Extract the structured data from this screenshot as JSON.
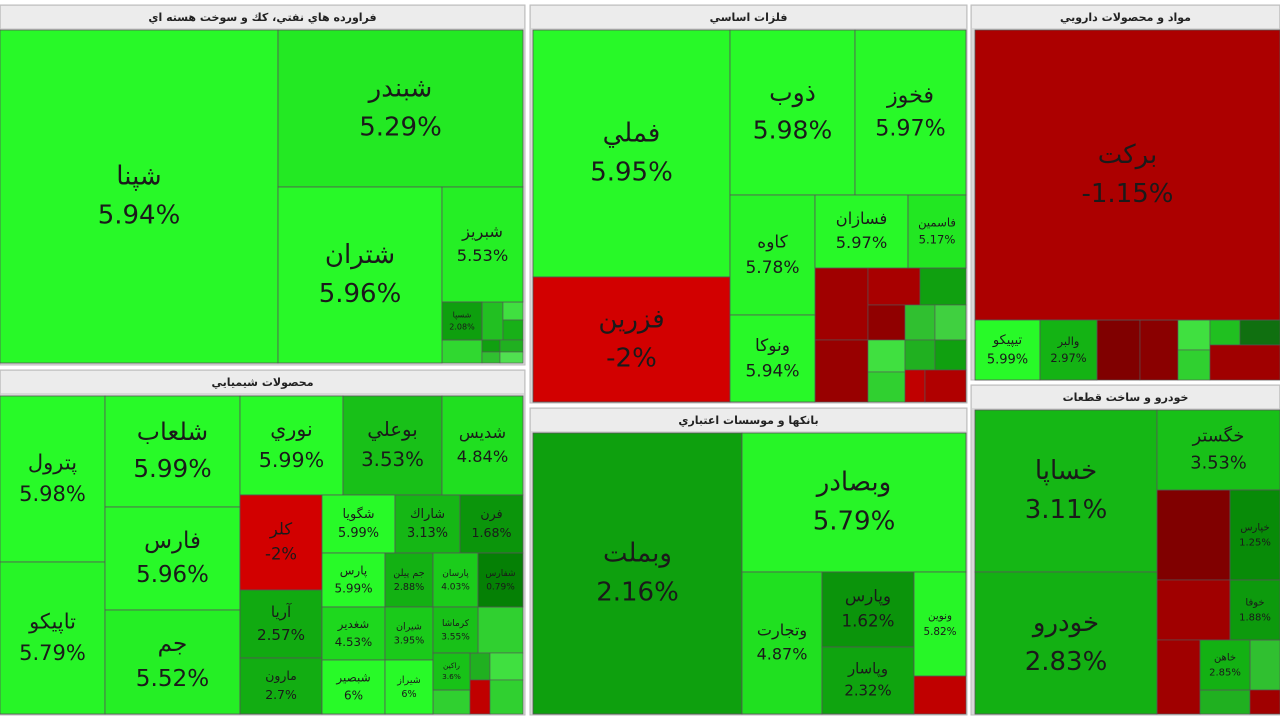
{
  "chart_data": [
    {
      "type": "treemap",
      "title": "فراورده هاي نفتي، كك و سوخت هسته اي",
      "categories": [
        "شپنا",
        "شبندر",
        "شتران",
        "شبریز",
        "شسپا"
      ],
      "values": [
        5.94,
        5.29,
        5.96,
        5.53,
        2.08
      ],
      "value_labels": [
        "5.94%",
        "5.29%",
        "5.96%",
        "5.53%",
        "2.08%"
      ]
    },
    {
      "type": "treemap",
      "title": "فلزات اساسي",
      "categories": [
        "فملي",
        "فزرين",
        "ذوب",
        "فخوز",
        "كاوه",
        "ونوكا",
        "فسازان",
        "فاسمين"
      ],
      "values": [
        5.95,
        -2,
        5.98,
        5.97,
        5.78,
        5.94,
        5.97,
        5.17
      ],
      "value_labels": [
        "5.95%",
        "-2%",
        "5.98%",
        "5.97%",
        "5.78%",
        "5.94%",
        "5.97%",
        "5.17%"
      ]
    },
    {
      "type": "treemap",
      "title": "مواد و محصولات دارويي",
      "categories": [
        "بركت",
        "تيپيكو",
        "والبر"
      ],
      "values": [
        -1.15,
        5.99,
        2.97
      ],
      "value_labels": [
        "-1.15%",
        "5.99%",
        "2.97%"
      ]
    },
    {
      "type": "treemap",
      "title": "محصولات شيميايي",
      "categories": [
        "پترول",
        "تاپيكو",
        "شلعاب",
        "فارس",
        "جم",
        "نوري",
        "بوعلي",
        "شديس",
        "كلر",
        "آريا",
        "مارون",
        "شگويا",
        "شاراك",
        "فرن",
        "پارس",
        "جم پيلن",
        "پارسان",
        "شفارس",
        "شغدير",
        "شيران",
        "كرماشا",
        "شبصير",
        "شيراز",
        "راكين"
      ],
      "values": [
        5.98,
        5.79,
        5.99,
        5.96,
        5.52,
        5.99,
        3.53,
        4.84,
        -2,
        2.57,
        2.7,
        5.99,
        3.13,
        1.68,
        5.99,
        2.88,
        4.03,
        0.79,
        4.53,
        3.95,
        3.55,
        6,
        6,
        3.6
      ],
      "value_labels": [
        "5.98%",
        "5.79%",
        "5.99%",
        "5.96%",
        "5.52%",
        "5.99%",
        "3.53%",
        "4.84%",
        "-2%",
        "2.57%",
        "2.7%",
        "5.99%",
        "3.13%",
        "1.68%",
        "5.99%",
        "2.88%",
        "4.03%",
        "0.79%",
        "4.53%",
        "3.95%",
        "3.55%",
        "6%",
        "6%",
        "3.6%"
      ]
    },
    {
      "type": "treemap",
      "title": "بانكها و موسسات اعتباري",
      "categories": [
        "وبملت",
        "وبصادر",
        "وتجارت",
        "وپارس",
        "وپاسار",
        "ونوين"
      ],
      "values": [
        2.16,
        5.79,
        4.87,
        1.62,
        2.32,
        5.82
      ],
      "value_labels": [
        "2.16%",
        "5.79%",
        "4.87%",
        "1.62%",
        "2.32%",
        "5.82%"
      ]
    },
    {
      "type": "treemap",
      "title": "خودرو و ساخت قطعات",
      "categories": [
        "خساپا",
        "خودرو",
        "خگستر",
        "خپارس",
        "خوفا",
        "خاهن"
      ],
      "values": [
        3.11,
        2.83,
        3.53,
        1.25,
        1.88,
        2.85
      ],
      "value_labels": [
        "3.11%",
        "2.83%",
        "3.53%",
        "1.25%",
        "1.88%",
        "2.85%"
      ]
    }
  ]
}
